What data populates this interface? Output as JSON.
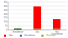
{
  "chart_data": {
    "type": "bar",
    "categories": [
      "Nieuwbouw",
      "Gas",
      "Gas Consumption"
    ],
    "series": [
      {
        "name": "Nieuwbouw",
        "color": "#4472c4",
        "values": [
          15,
          5,
          5
        ]
      },
      {
        "name": "Renovatie",
        "color": "#70ad47",
        "values": [
          8,
          10,
          10
        ]
      },
      {
        "name": "Gas",
        "color": "#ff0000",
        "values": [
          0,
          280,
          120
        ]
      }
    ],
    "stacked": true,
    "ylim": [
      0,
      350
    ],
    "yticks": [
      0,
      50,
      100,
      150,
      200,
      250,
      300,
      350
    ],
    "grid": true,
    "legend": "bottom"
  }
}
